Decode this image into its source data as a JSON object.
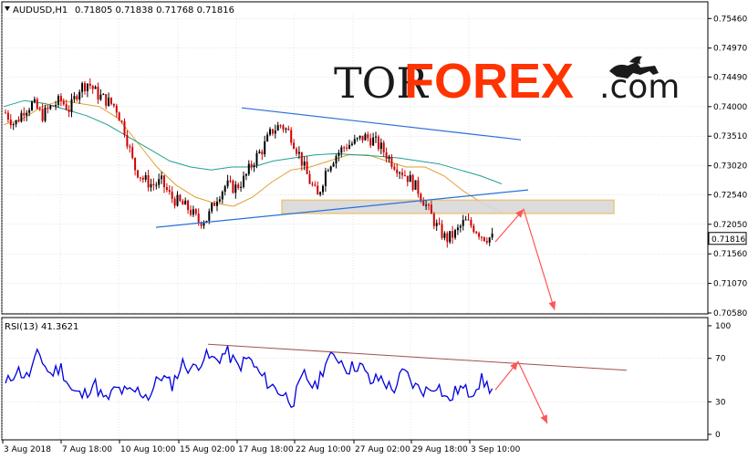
{
  "main_header": {
    "symbol": "AUDUSD,H1",
    "ohlc": "0.71805 0.71838 0.71768 0.71816"
  },
  "rsi_header": {
    "label": "RSI(13) 41.3621"
  },
  "current_price_label": "0.71816",
  "logo": {
    "tor": "TOR",
    "forex": "FOREX",
    "com": ".com",
    "icon": "bull-bear-icon"
  },
  "colors": {
    "bull": "#000000",
    "bear": "#d00000",
    "ma_fast": "#e0a030",
    "ma_slow": "#20a090",
    "trendline": "#2a6fdb",
    "zone_fill": "#d9d9d9",
    "zone_border": "#e8c070",
    "arrow": "#ff5555",
    "rsi_line": "#0000dd",
    "rsi_trend": "#a05050",
    "grid": "#c8c8c8",
    "price_tag": "#ffffff"
  },
  "chart_data": [
    {
      "type": "candlestick",
      "title": "AUDUSD,H1",
      "ylim": [
        0.7058,
        0.7554
      ],
      "y_ticks": [
        "0.75460",
        "0.74970",
        "0.74490",
        "0.74000",
        "0.73510",
        "0.73020",
        "0.72540",
        "0.72050",
        "0.71560",
        "0.71070",
        "0.70580"
      ],
      "x_ticks": [
        "3 Aug 2018",
        "7 Aug 18:00",
        "10 Aug 10:00",
        "15 Aug 02:00",
        "17 Aug 18:00",
        "22 Aug 10:00",
        "27 Aug 02:00",
        "29 Aug 18:00",
        "3 Sep 10:00"
      ],
      "close_path": [
        0.739,
        0.737,
        0.7395,
        0.7405,
        0.7385,
        0.74,
        0.741,
        0.7395,
        0.743,
        0.744,
        0.742,
        0.741,
        0.74,
        0.736,
        0.73,
        0.728,
        0.727,
        0.7275,
        0.725,
        0.724,
        0.723,
        0.721,
        0.7215,
        0.725,
        0.727,
        0.7265,
        0.728,
        0.731,
        0.733,
        0.736,
        0.737,
        0.7355,
        0.732,
        0.728,
        0.725,
        0.73,
        0.732,
        0.7335,
        0.734,
        0.735,
        0.7345,
        0.733,
        0.731,
        0.7295,
        0.728,
        0.726,
        0.723,
        0.72,
        0.718,
        0.719,
        0.721,
        0.72,
        0.7185,
        0.7182
      ],
      "ma_fast": [
        0.737,
        0.738,
        0.74,
        0.741,
        0.7405,
        0.74,
        0.738,
        0.734,
        0.73,
        0.727,
        0.725,
        0.724,
        0.7235,
        0.725,
        0.7275,
        0.7295,
        0.73,
        0.731,
        0.732,
        0.732,
        0.731,
        0.73,
        0.73,
        0.7285,
        0.726,
        0.724,
        0.7225
      ],
      "ma_slow": [
        0.74,
        0.741,
        0.7405,
        0.7395,
        0.7385,
        0.737,
        0.735,
        0.733,
        0.731,
        0.73,
        0.7295,
        0.73,
        0.73,
        0.731,
        0.7315,
        0.732,
        0.7322,
        0.732,
        0.7318,
        0.7315,
        0.731,
        0.7305,
        0.7295,
        0.7285,
        0.7272
      ],
      "resistance_line": {
        "from": [
          "16 Aug",
          0.7398
        ],
        "to": [
          "4 Sep",
          0.7345
        ]
      },
      "support_line": {
        "from": [
          "13 Aug",
          0.72
        ],
        "to": [
          "4 Sep",
          0.7262
        ]
      },
      "zone": {
        "from_price": 0.7223,
        "to_price": 0.7245
      },
      "forecast_arrow": [
        0.7176,
        0.723,
        0.7063
      ],
      "current_price": 0.71816
    },
    {
      "type": "line",
      "title": "RSI(13) 41.3621",
      "ylim": [
        0,
        100
      ],
      "y_ticks": [
        "100",
        "70",
        "30",
        "0"
      ],
      "rsi_path": [
        45,
        60,
        52,
        75,
        55,
        62,
        40,
        35,
        48,
        30,
        42,
        38,
        40,
        35,
        55,
        45,
        65,
        60,
        72,
        68,
        76,
        62,
        70,
        55,
        45,
        38,
        30,
        55,
        42,
        68,
        72,
        60,
        65,
        48,
        52,
        40,
        58,
        44,
        40,
        47,
        30,
        43,
        38,
        50,
        41
      ],
      "rsi_trend": {
        "from": 83,
        "to": 59
      },
      "forecast_arrow": [
        41,
        67,
        10
      ]
    }
  ]
}
